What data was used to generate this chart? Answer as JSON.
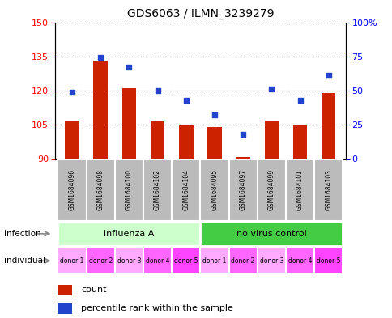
{
  "title": "GDS6063 / ILMN_3239279",
  "samples": [
    "GSM1684096",
    "GSM1684098",
    "GSM1684100",
    "GSM1684102",
    "GSM1684104",
    "GSM1684095",
    "GSM1684097",
    "GSM1684099",
    "GSM1684101",
    "GSM1684103"
  ],
  "counts": [
    107,
    133,
    121,
    107,
    105,
    104,
    91,
    107,
    105,
    119
  ],
  "percentiles": [
    49,
    74,
    67,
    50,
    43,
    32,
    18,
    51,
    43,
    61
  ],
  "ylim_left": [
    90,
    150
  ],
  "ylim_right": [
    0,
    100
  ],
  "yticks_left": [
    90,
    105,
    120,
    135,
    150
  ],
  "yticks_right": [
    0,
    25,
    50,
    75,
    100
  ],
  "infection_groups": [
    {
      "label": "influenza A",
      "start": 0,
      "end": 5,
      "color": "#ccffcc"
    },
    {
      "label": "no virus control",
      "start": 5,
      "end": 10,
      "color": "#44cc44"
    }
  ],
  "individuals": [
    "donor 1",
    "donor 2",
    "donor 3",
    "donor 4",
    "donor 5",
    "donor 1",
    "donor 2",
    "donor 3",
    "donor 4",
    "donor 5"
  ],
  "individual_colors": [
    "#ffaaff",
    "#ff66ff",
    "#ffaaff",
    "#ff66ff",
    "#ff44ff",
    "#ffaaff",
    "#ff66ff",
    "#ffaaff",
    "#ff66ff",
    "#ff44ff"
  ],
  "bar_color": "#cc2200",
  "dot_color": "#2244cc",
  "bar_width": 0.5,
  "sample_bg_color": "#bbbbbb",
  "legend_count_label": "count",
  "legend_percentile_label": "percentile rank within the sample"
}
